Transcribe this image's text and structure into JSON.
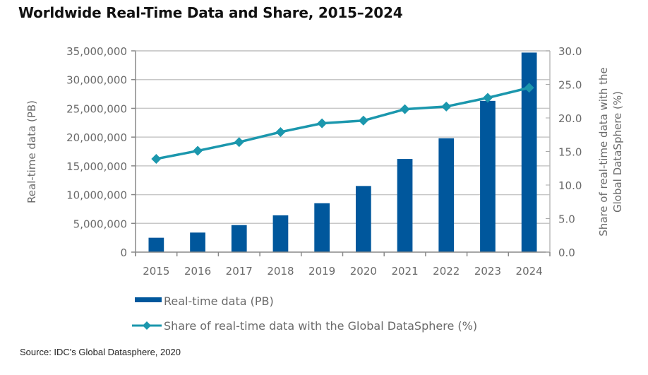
{
  "chart_data": {
    "type": "bar",
    "title": "Worldwide Real-Time Data and Share, 2015–2024",
    "categories": [
      "2015",
      "2016",
      "2017",
      "2018",
      "2019",
      "2020",
      "2021",
      "2022",
      "2023",
      "2024"
    ],
    "series": [
      {
        "name": "Real-time data (PB)",
        "type": "bar",
        "axis": "left",
        "color": "#00579c",
        "values": [
          2500000,
          3400000,
          4700000,
          6400000,
          8500000,
          11500000,
          16200000,
          19800000,
          26300000,
          34700000
        ]
      },
      {
        "name": "Share of real-time data with the Global DataSphere (%)",
        "type": "line",
        "axis": "right",
        "color": "#1b97ad",
        "marker": "diamond",
        "values": [
          13.9,
          15.1,
          16.4,
          17.9,
          19.2,
          19.6,
          21.3,
          21.7,
          23.0,
          24.5
        ]
      }
    ],
    "xlabel": "",
    "ylabel": "Real-time data (PB)",
    "y2label_line1": "Share of real-time data with the",
    "y2label_line2": "Global DataSphere (%)",
    "ylim": [
      0,
      35000000
    ],
    "y2lim": [
      0,
      30
    ],
    "yticks": [
      "0",
      "5,000,000",
      "10,000,000",
      "15,000,000",
      "20,000,000",
      "25,000,000",
      "30,000,000",
      "35,000,000"
    ],
    "y2ticks": [
      "0.0",
      "5.0",
      "10.0",
      "15.0",
      "20.0",
      "25.0",
      "30.0"
    ],
    "grid": true,
    "legend": "bottom-left"
  },
  "source": "Source: IDC's Global Datasphere, 2020"
}
